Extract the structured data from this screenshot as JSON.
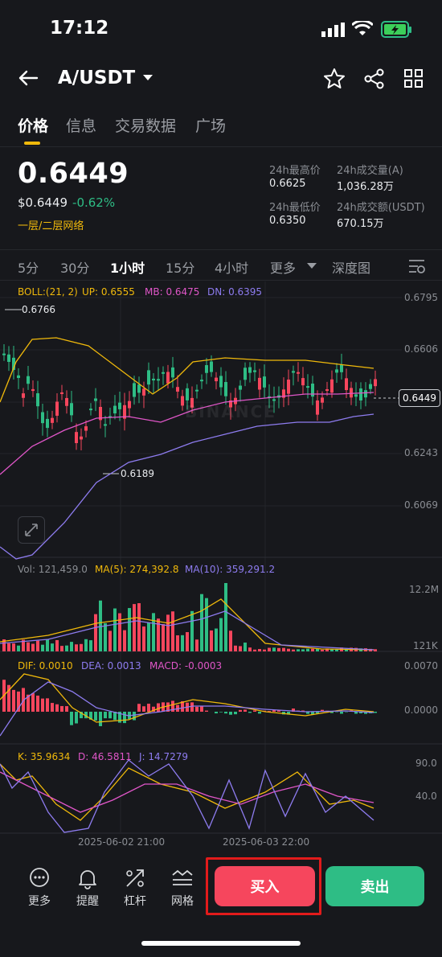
{
  "status_bar": {
    "time": "17:12"
  },
  "header": {
    "pair": "A/USDT",
    "back_icon": "arrow-left-icon",
    "star_icon": "star-icon",
    "share_icon": "share-icon",
    "grid_icon": "grid-icon"
  },
  "tabs": [
    {
      "label": "价格",
      "active": true
    },
    {
      "label": "信息",
      "active": false
    },
    {
      "label": "交易数据",
      "active": false
    },
    {
      "label": "广场",
      "active": false
    }
  ],
  "price": {
    "last": "0.6449",
    "usd": "$0.6449",
    "change": "-0.62%",
    "network": "一层/二层网络"
  },
  "stats": {
    "high_label": "24h最高价",
    "high": "0.6625",
    "vol_a_label": "24h成交量(A)",
    "vol_a": "1,036.28万",
    "low_label": "24h最低价",
    "low": "0.6350",
    "vol_usdt_label": "24h成交额(USDT)",
    "vol_usdt": "670.15万"
  },
  "intervals": [
    "5分",
    "30分",
    "1小时",
    "15分",
    "4小时",
    "更多",
    "深度图"
  ],
  "active_interval": "1小时",
  "boll": {
    "label": "BOLL:(21, 2)",
    "up": "UP: 0.6555",
    "mb": "MB: 0.6475",
    "dn": "DN: 0.6395"
  },
  "price_axis": [
    "0.6795",
    "0.6606",
    "0.6449",
    "0.6243",
    "0.6069"
  ],
  "current_price_tag": "0.6449",
  "marker_high": "0.6766",
  "marker_low": "0.6189",
  "watermark": "BINANCE",
  "vol": {
    "vol": "Vol: 121,459.0",
    "ma5": "MA(5): 274,392.8",
    "ma10": "MA(10): 359,291.2",
    "axis_top": "12.2M",
    "axis_bottom": "121K"
  },
  "macd": {
    "dif": "DIF: 0.0010",
    "dea": "DEA: 0.0013",
    "macd": "MACD: -0.0003",
    "axis_top": "0.0070",
    "axis_mid": "0.0000"
  },
  "kdj": {
    "k": "K: 35.9634",
    "d": "D: 46.5811",
    "j": "J: 14.7279",
    "axis_top": "90.0",
    "axis_mid": "40.0"
  },
  "time_axis": [
    "2025-06-02 21:00",
    "2025-06-03 22:00"
  ],
  "bottom_nav": [
    {
      "label": "更多",
      "icon": "more-icon"
    },
    {
      "label": "提醒",
      "icon": "bell-icon"
    },
    {
      "label": "杠杆",
      "icon": "leverage-icon"
    },
    {
      "label": "网格",
      "icon": "grid-trading-icon"
    }
  ],
  "buy_label": "买入",
  "sell_label": "卖出",
  "colors": {
    "up": "#2ebd85",
    "down": "#f6465d",
    "accent": "#f0b90b",
    "mb": "#e056c8",
    "dn": "#8e7cf0",
    "bg": "#17181c"
  }
}
